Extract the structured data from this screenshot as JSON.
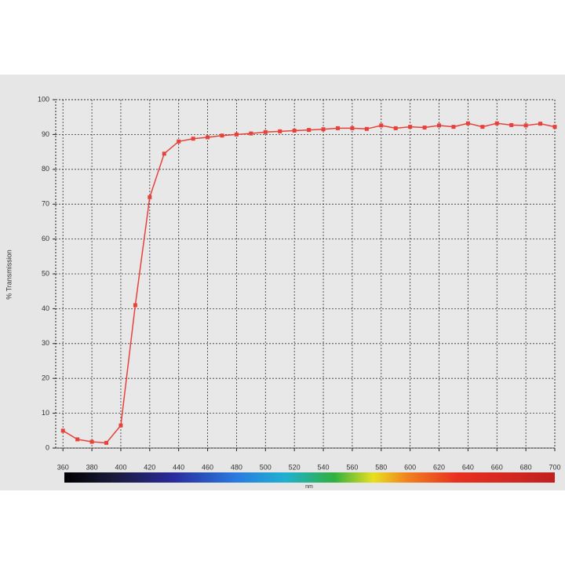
{
  "chart_data": {
    "type": "line",
    "x": [
      360,
      370,
      380,
      390,
      400,
      410,
      420,
      430,
      440,
      450,
      460,
      470,
      480,
      490,
      500,
      510,
      520,
      530,
      540,
      550,
      560,
      570,
      580,
      590,
      600,
      610,
      620,
      630,
      640,
      650,
      660,
      670,
      680,
      690,
      700
    ],
    "series": [
      {
        "name": "% Transmission",
        "color": "#e8413c",
        "values": [
          5,
          2.5,
          1.8,
          1.5,
          6.5,
          41,
          72,
          84.5,
          88,
          88.8,
          89.2,
          89.7,
          90,
          90.3,
          90.7,
          90.9,
          91.1,
          91.3,
          91.5,
          91.8,
          91.8,
          91.6,
          92.6,
          91.8,
          92.2,
          92,
          92.6,
          92.2,
          93.2,
          92.2,
          93.2,
          92.7,
          92.6,
          93.1,
          92.2
        ]
      }
    ],
    "y_label": "% Transmission",
    "x_label": "nm",
    "xlim": [
      355,
      700
    ],
    "xticks": [
      360,
      380,
      400,
      420,
      440,
      460,
      480,
      500,
      520,
      540,
      560,
      580,
      600,
      620,
      640,
      660,
      680,
      700
    ],
    "ylim": [
      0,
      100
    ],
    "yticks": [
      0,
      10,
      20,
      30,
      40,
      50,
      60,
      70,
      80,
      90,
      100
    ],
    "grid": true
  }
}
